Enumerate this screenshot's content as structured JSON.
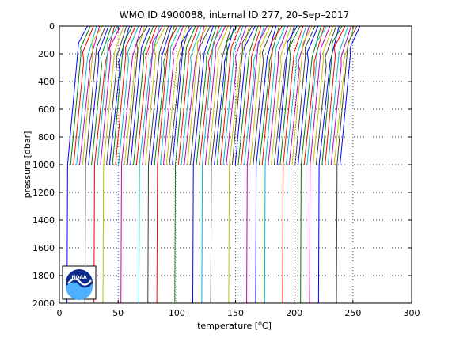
{
  "chart_data": {
    "type": "line",
    "title": "WMO ID 4900088, internal ID 277, 20–Sep–2017",
    "xlabel_main": "temperature [",
    "xlabel_degree": "o",
    "xlabel_unit": "C]",
    "ylabel": "pressure [dbar]",
    "xlim": [
      0,
      300
    ],
    "ylim": [
      2000,
      0
    ],
    "y_reversed": true,
    "xticks": [
      0,
      50,
      100,
      150,
      200,
      250,
      300
    ],
    "yticks": [
      0,
      200,
      400,
      600,
      800,
      1000,
      1200,
      1400,
      1600,
      1800,
      2000
    ],
    "grid": true,
    "offset_profiles": {
      "description_note": "",
      "count": 92,
      "first_surface_temperature": 24,
      "last_surface_temperature": 256,
      "offset_step": 2.55,
      "surface_pressure": 0,
      "shallow_profile_bottom_pressure": 1000,
      "deep_profile_bottom_pressure": 2000,
      "temperature_drop_over_profile": 17,
      "colors": [
        "#0000ff",
        "#008000",
        "#ff0000",
        "#00bfbf",
        "#bf00bf",
        "#bfbf00",
        "#404040"
      ]
    },
    "logo": {
      "text": "NOAA"
    }
  }
}
